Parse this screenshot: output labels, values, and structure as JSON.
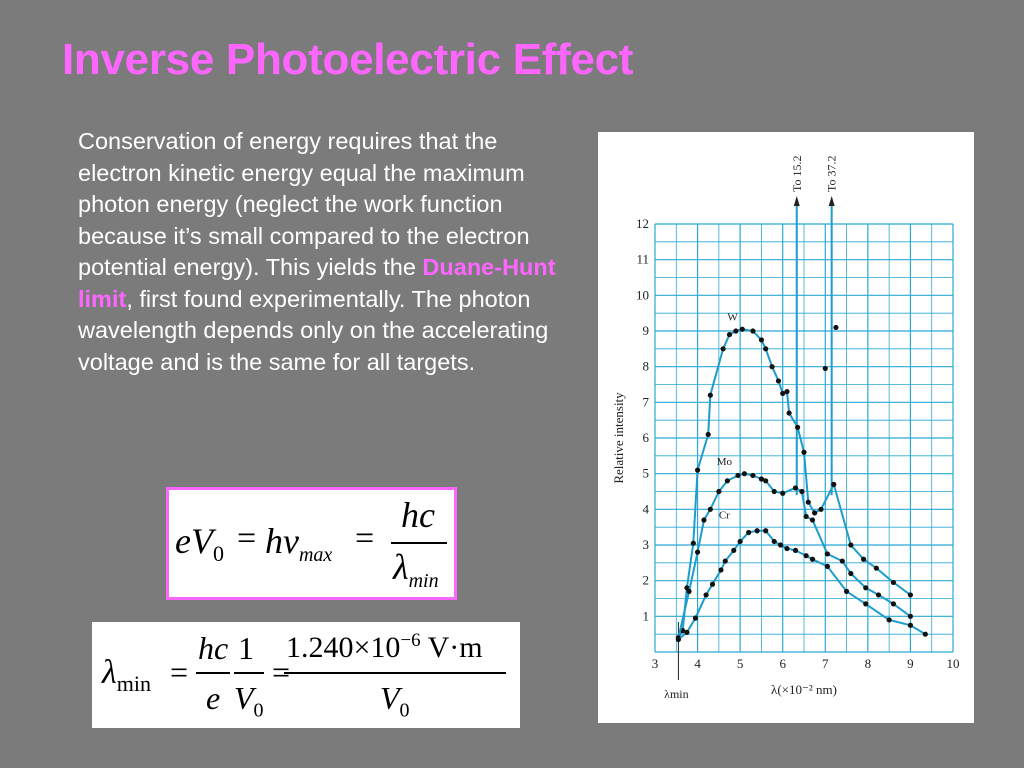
{
  "title": "Inverse Photoelectric Effect",
  "paragraph": {
    "text_before": "Conservation of energy requires that the electron kinetic energy equal the maximum photon energy (neglect the work function because it’s small compared to the electron potential energy). This yields the ",
    "highlight": "Duane-Hunt limit",
    "text_after": ", first found experimentally. The photon wavelength depends only on the accelerating voltage and is the same for all targets."
  },
  "equation1": {
    "lhs": "eV",
    "lhs_sub": "0",
    "eq": "=",
    "mid": "hν",
    "mid_sub": "max",
    "numerator": "hc",
    "denominator": "λ",
    "denominator_sub": "min"
  },
  "equation2": {
    "lhs": "λ",
    "lhs_sub": "min",
    "eq": "=",
    "frac1_num": "hc",
    "frac1_den": "e",
    "frac2_num": "1",
    "frac2_den": "V",
    "frac2_den_sub": "0",
    "frac3_num_mantissa": "1.240×10",
    "frac3_num_exp": "−6",
    "frac3_num_unit": "V·m",
    "frac3_den": "V",
    "frac3_den_sub": "0"
  },
  "chart_data": {
    "type": "scatter",
    "xlabel": "λ(×10⁻² nm)",
    "ylabel": "Relative intensity",
    "xlim": [
      3,
      10
    ],
    "ylim": [
      0,
      12
    ],
    "x_ticks": [
      "3",
      "4",
      "5",
      "6",
      "7",
      "8",
      "9",
      "10"
    ],
    "y_ticks": [
      "1",
      "2",
      "3",
      "4",
      "5",
      "6",
      "7",
      "8",
      "9",
      "10",
      "11",
      "12"
    ],
    "grid": true,
    "lambda_min_label": "λmin",
    "lambda_min_x": 3.55,
    "annotations": [
      {
        "text": "To 15.2",
        "x": 6.33
      },
      {
        "text": "To 37.2",
        "x": 7.15
      }
    ],
    "series": [
      {
        "name": "W",
        "points": [
          [
            3.55,
            0.4
          ],
          [
            3.65,
            0.6
          ],
          [
            3.75,
            1.8
          ],
          [
            3.9,
            3.05
          ],
          [
            4.0,
            5.1
          ],
          [
            4.25,
            6.1
          ],
          [
            4.3,
            7.2
          ],
          [
            4.6,
            8.5
          ],
          [
            4.75,
            8.9
          ],
          [
            4.9,
            9.0
          ],
          [
            5.05,
            9.05
          ],
          [
            5.3,
            9.0
          ],
          [
            5.5,
            8.75
          ],
          [
            5.6,
            8.5
          ],
          [
            5.75,
            8.0
          ],
          [
            5.9,
            7.6
          ],
          [
            6.0,
            7.25
          ],
          [
            6.1,
            7.3
          ],
          [
            6.15,
            6.7
          ],
          [
            6.35,
            6.3
          ],
          [
            6.5,
            5.6
          ],
          [
            6.6,
            4.2
          ],
          [
            6.75,
            3.9
          ],
          [
            6.9,
            4.0
          ],
          [
            7.2,
            4.7
          ],
          [
            7.0,
            7.95
          ],
          [
            7.25,
            9.1
          ],
          [
            7.6,
            3.0
          ],
          [
            7.9,
            2.6
          ],
          [
            8.2,
            2.35
          ],
          [
            8.6,
            1.95
          ],
          [
            9.0,
            1.6
          ]
        ]
      },
      {
        "name": "Mo",
        "points": [
          [
            3.55,
            0.4
          ],
          [
            3.8,
            1.7
          ],
          [
            4.0,
            2.8
          ],
          [
            4.15,
            3.7
          ],
          [
            4.3,
            4.0
          ],
          [
            4.5,
            4.5
          ],
          [
            4.7,
            4.8
          ],
          [
            4.95,
            4.95
          ],
          [
            5.1,
            5.0
          ],
          [
            5.3,
            4.95
          ],
          [
            5.5,
            4.85
          ],
          [
            5.6,
            4.8
          ],
          [
            5.8,
            4.5
          ],
          [
            6.0,
            4.45
          ],
          [
            6.3,
            4.6
          ],
          [
            6.45,
            4.5
          ],
          [
            6.55,
            3.8
          ],
          [
            6.7,
            3.7
          ],
          [
            7.05,
            2.75
          ],
          [
            7.4,
            2.55
          ],
          [
            7.6,
            2.2
          ],
          [
            7.95,
            1.8
          ],
          [
            8.25,
            1.6
          ],
          [
            8.6,
            1.35
          ],
          [
            9.0,
            1.0
          ]
        ]
      },
      {
        "name": "Cr",
        "points": [
          [
            3.55,
            0.35
          ],
          [
            3.75,
            0.55
          ],
          [
            3.95,
            0.95
          ],
          [
            4.2,
            1.6
          ],
          [
            4.35,
            1.9
          ],
          [
            4.55,
            2.3
          ],
          [
            4.65,
            2.55
          ],
          [
            4.85,
            2.85
          ],
          [
            5.0,
            3.1
          ],
          [
            5.2,
            3.35
          ],
          [
            5.4,
            3.4
          ],
          [
            5.6,
            3.4
          ],
          [
            5.8,
            3.1
          ],
          [
            5.95,
            3.0
          ],
          [
            6.1,
            2.9
          ],
          [
            6.3,
            2.85
          ],
          [
            6.55,
            2.7
          ],
          [
            6.7,
            2.6
          ],
          [
            7.05,
            2.4
          ],
          [
            7.5,
            1.7
          ],
          [
            7.95,
            1.35
          ],
          [
            8.5,
            0.9
          ],
          [
            9.0,
            0.75
          ],
          [
            9.35,
            0.5
          ]
        ]
      }
    ]
  }
}
